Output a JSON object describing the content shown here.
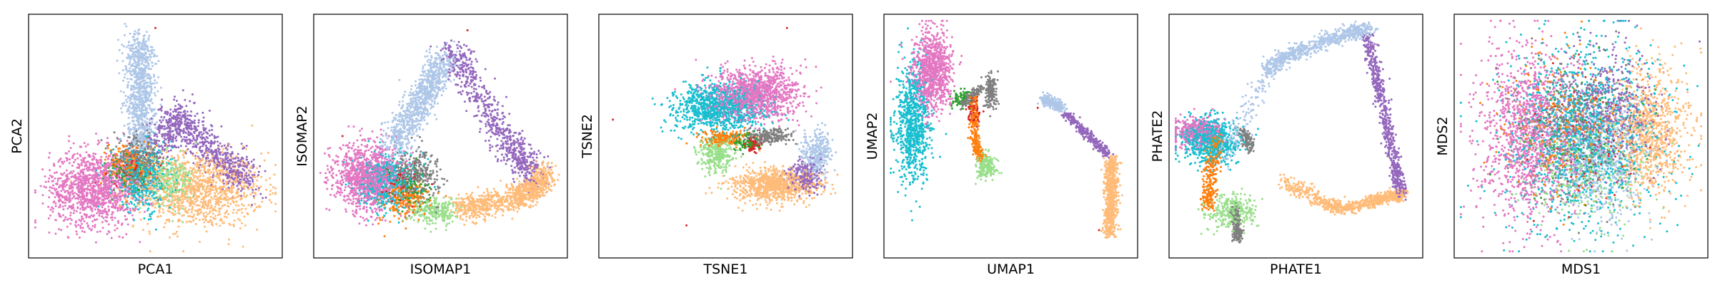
{
  "figure": {
    "palette": {
      "c0": "#aec7e8",
      "c1": "#9467bd",
      "c2": "#ffbb78",
      "c3": "#e377c2",
      "c4": "#17becf",
      "c5": "#7f7f7f",
      "c6": "#ff7f0e",
      "c7": "#98df8a",
      "c8": "#d62728",
      "c9": "#2ca02c"
    }
  },
  "chart_data": [
    {
      "type": "scatter",
      "xlabel": "PCA1",
      "ylabel": "PCA2",
      "xlim": [
        0,
        1
      ],
      "ylim": [
        0,
        1
      ],
      "grid": false,
      "ticks": false,
      "clusters": [
        {
          "color": "c2",
          "cx": 0.68,
          "cy": 0.27,
          "sx": 0.13,
          "sy": 0.08,
          "n": 1100
        },
        {
          "color": "c3",
          "cx": 0.25,
          "cy": 0.28,
          "sx": 0.09,
          "sy": 0.08,
          "n": 1200
        },
        {
          "color": "c4",
          "cx": 0.45,
          "cy": 0.32,
          "sx": 0.06,
          "sy": 0.07,
          "n": 500
        },
        {
          "color": "c5",
          "cx": 0.43,
          "cy": 0.4,
          "sx": 0.05,
          "sy": 0.05,
          "n": 300
        },
        {
          "color": "c7",
          "cx": 0.56,
          "cy": 0.31,
          "sx": 0.05,
          "sy": 0.05,
          "n": 250
        },
        {
          "color": "c6",
          "cx": 0.4,
          "cy": 0.38,
          "sx": 0.05,
          "sy": 0.05,
          "n": 200
        },
        {
          "color": "c9",
          "cx": 0.38,
          "cy": 0.34,
          "sx": 0.04,
          "sy": 0.04,
          "n": 100
        },
        {
          "color": "c8",
          "cx": 0.4,
          "cy": 0.36,
          "sx": 0.04,
          "sy": 0.04,
          "n": 80
        }
      ],
      "paths": [
        {
          "color": "c0",
          "n": 900,
          "w": 0.05,
          "pts": [
            [
              0.45,
              0.45
            ],
            [
              0.44,
              0.62
            ],
            [
              0.44,
              0.76
            ],
            [
              0.43,
              0.92
            ]
          ]
        },
        {
          "color": "c1",
          "n": 800,
          "w": 0.06,
          "pts": [
            [
              0.52,
              0.46
            ],
            [
              0.6,
              0.6
            ],
            [
              0.68,
              0.48
            ],
            [
              0.8,
              0.38
            ],
            [
              0.88,
              0.3
            ]
          ]
        }
      ],
      "outliers": [
        [
          0.5,
          0.96
        ]
      ]
    },
    {
      "type": "scatter",
      "xlabel": "ISOMAP1",
      "ylabel": "ISOMAP2",
      "xlim": [
        0,
        1
      ],
      "ylim": [
        0,
        1
      ],
      "grid": false,
      "ticks": false,
      "clusters": [
        {
          "color": "c3",
          "cx": 0.2,
          "cy": 0.33,
          "sx": 0.07,
          "sy": 0.07,
          "n": 1100
        },
        {
          "color": "c4",
          "cx": 0.28,
          "cy": 0.31,
          "sx": 0.06,
          "sy": 0.06,
          "n": 500
        },
        {
          "color": "c5",
          "cx": 0.4,
          "cy": 0.33,
          "sx": 0.05,
          "sy": 0.06,
          "n": 300
        },
        {
          "color": "c7",
          "cx": 0.47,
          "cy": 0.18,
          "sx": 0.05,
          "sy": 0.03,
          "n": 250
        },
        {
          "color": "c6",
          "cx": 0.35,
          "cy": 0.22,
          "sx": 0.05,
          "sy": 0.04,
          "n": 200
        },
        {
          "color": "c9",
          "cx": 0.38,
          "cy": 0.28,
          "sx": 0.04,
          "sy": 0.04,
          "n": 100
        },
        {
          "color": "c8",
          "cx": 0.33,
          "cy": 0.3,
          "sx": 0.04,
          "sy": 0.04,
          "n": 80
        }
      ],
      "paths": [
        {
          "color": "c2",
          "n": 1000,
          "w": 0.045,
          "pts": [
            [
              0.58,
              0.2
            ],
            [
              0.7,
              0.21
            ],
            [
              0.82,
              0.24
            ],
            [
              0.89,
              0.28
            ],
            [
              0.92,
              0.35
            ]
          ]
        },
        {
          "color": "c0",
          "n": 900,
          "w": 0.05,
          "pts": [
            [
              0.3,
              0.45
            ],
            [
              0.38,
              0.58
            ],
            [
              0.45,
              0.7
            ],
            [
              0.52,
              0.84
            ]
          ]
        },
        {
          "color": "c1",
          "n": 700,
          "w": 0.055,
          "pts": [
            [
              0.55,
              0.86
            ],
            [
              0.62,
              0.74
            ],
            [
              0.72,
              0.55
            ],
            [
              0.82,
              0.42
            ],
            [
              0.88,
              0.32
            ]
          ]
        }
      ],
      "outliers": [
        [
          0.61,
          0.95
        ],
        [
          0.1,
          0.5
        ]
      ]
    },
    {
      "type": "scatter",
      "xlabel": "TSNE1",
      "ylabel": "TSNE2",
      "xlim": [
        0,
        1
      ],
      "ylim": [
        0,
        1
      ],
      "grid": false,
      "ticks": false,
      "clusters": [
        {
          "color": "c3",
          "cx": 0.62,
          "cy": 0.68,
          "sx": 0.09,
          "sy": 0.055,
          "n": 1200
        },
        {
          "color": "c4",
          "cx": 0.47,
          "cy": 0.62,
          "sx": 0.09,
          "sy": 0.05,
          "n": 1000
        },
        {
          "color": "c2",
          "cx": 0.7,
          "cy": 0.29,
          "sx": 0.09,
          "sy": 0.035,
          "n": 900
        },
        {
          "color": "c0",
          "cx": 0.87,
          "cy": 0.43,
          "sx": 0.03,
          "sy": 0.05,
          "n": 300
        },
        {
          "color": "c1",
          "cx": 0.82,
          "cy": 0.33,
          "sx": 0.035,
          "sy": 0.035,
          "n": 250
        },
        {
          "color": "c7",
          "cx": 0.46,
          "cy": 0.42,
          "sx": 0.035,
          "sy": 0.035,
          "n": 300
        },
        {
          "color": "c6",
          "cx": 0.49,
          "cy": 0.49,
          "sx": 0.045,
          "sy": 0.015,
          "n": 200
        },
        {
          "color": "c5",
          "cx": 0.67,
          "cy": 0.5,
          "sx": 0.05,
          "sy": 0.015,
          "n": 200
        },
        {
          "color": "c9",
          "cx": 0.58,
          "cy": 0.47,
          "sx": 0.03,
          "sy": 0.02,
          "n": 80
        },
        {
          "color": "c8",
          "cx": 0.61,
          "cy": 0.46,
          "sx": 0.02,
          "sy": 0.015,
          "n": 60
        }
      ],
      "paths": [],
      "outliers": [
        [
          0.04,
          0.57
        ],
        [
          0.34,
          0.12
        ],
        [
          0.75,
          0.96
        ]
      ]
    },
    {
      "type": "scatter",
      "xlabel": "UMAP1",
      "ylabel": "UMAP2",
      "xlim": [
        0,
        1
      ],
      "ylim": [
        0,
        1
      ],
      "grid": false,
      "ticks": false,
      "clusters": [
        {
          "color": "c3",
          "cx": 0.18,
          "cy": 0.78,
          "sx": 0.04,
          "sy": 0.09,
          "n": 900
        },
        {
          "color": "c4",
          "cx": 0.1,
          "cy": 0.55,
          "sx": 0.035,
          "sy": 0.12,
          "n": 800
        },
        {
          "color": "c7",
          "cx": 0.4,
          "cy": 0.37,
          "sx": 0.02,
          "sy": 0.025,
          "n": 200
        },
        {
          "color": "c5",
          "cx": 0.42,
          "cy": 0.69,
          "sx": 0.012,
          "sy": 0.035,
          "n": 150
        },
        {
          "color": "c9",
          "cx": 0.3,
          "cy": 0.66,
          "sx": 0.02,
          "sy": 0.02,
          "n": 80
        },
        {
          "color": "c8",
          "cx": 0.35,
          "cy": 0.6,
          "sx": 0.015,
          "sy": 0.03,
          "n": 60
        }
      ],
      "paths": [
        {
          "color": "c0",
          "n": 250,
          "w": 0.018,
          "pts": [
            [
              0.63,
              0.66
            ],
            [
              0.67,
              0.64
            ],
            [
              0.71,
              0.62
            ]
          ]
        },
        {
          "color": "c1",
          "n": 300,
          "w": 0.015,
          "pts": [
            [
              0.72,
              0.6
            ],
            [
              0.78,
              0.54
            ],
            [
              0.84,
              0.48
            ],
            [
              0.9,
              0.42
            ]
          ]
        },
        {
          "color": "c2",
          "n": 700,
          "w": 0.022,
          "pts": [
            [
              0.91,
              0.4
            ],
            [
              0.91,
              0.3
            ],
            [
              0.91,
              0.2
            ],
            [
              0.9,
              0.08
            ]
          ]
        },
        {
          "color": "c6",
          "n": 250,
          "w": 0.015,
          "pts": [
            [
              0.35,
              0.66
            ],
            [
              0.35,
              0.55
            ],
            [
              0.36,
              0.46
            ],
            [
              0.38,
              0.4
            ]
          ]
        },
        {
          "color": "c5",
          "n": 120,
          "w": 0.015,
          "pts": [
            [
              0.3,
              0.63
            ],
            [
              0.34,
              0.67
            ],
            [
              0.38,
              0.7
            ]
          ]
        }
      ],
      "outliers": [
        [
          0.61,
          0.62
        ],
        [
          0.86,
          0.1
        ]
      ]
    },
    {
      "type": "scatter",
      "xlabel": "PHATE1",
      "ylabel": "PHATE2",
      "xlim": [
        0,
        1
      ],
      "ylim": [
        0,
        1
      ],
      "grid": false,
      "ticks": false,
      "clusters": [
        {
          "color": "c4",
          "cx": 0.15,
          "cy": 0.48,
          "sx": 0.06,
          "sy": 0.05,
          "n": 700
        },
        {
          "color": "c3",
          "cx": 0.1,
          "cy": 0.52,
          "sx": 0.05,
          "sy": 0.03,
          "n": 400
        },
        {
          "color": "c7",
          "cx": 0.24,
          "cy": 0.18,
          "sx": 0.05,
          "sy": 0.04,
          "n": 300
        }
      ],
      "paths": [
        {
          "color": "c0",
          "n": 700,
          "w": 0.028,
          "pts": [
            [
              0.38,
              0.78
            ],
            [
              0.48,
              0.85
            ],
            [
              0.6,
              0.9
            ],
            [
              0.72,
              0.94
            ],
            [
              0.8,
              0.95
            ]
          ]
        },
        {
          "color": "c1",
          "n": 650,
          "w": 0.022,
          "pts": [
            [
              0.79,
              0.93
            ],
            [
              0.82,
              0.8
            ],
            [
              0.85,
              0.65
            ],
            [
              0.88,
              0.5
            ],
            [
              0.91,
              0.35
            ],
            [
              0.93,
              0.25
            ]
          ]
        },
        {
          "color": "c2",
          "n": 600,
          "w": 0.022,
          "pts": [
            [
              0.6,
              0.22
            ],
            [
              0.7,
              0.19
            ],
            [
              0.8,
              0.22
            ],
            [
              0.88,
              0.24
            ],
            [
              0.93,
              0.25
            ]
          ]
        },
        {
          "color": "c6",
          "n": 300,
          "w": 0.025,
          "pts": [
            [
              0.18,
              0.5
            ],
            [
              0.16,
              0.4
            ],
            [
              0.15,
              0.28
            ],
            [
              0.14,
              0.2
            ]
          ]
        },
        {
          "color": "c5",
          "n": 200,
          "w": 0.015,
          "pts": [
            [
              0.25,
              0.2
            ],
            [
              0.26,
              0.12
            ],
            [
              0.26,
              0.06
            ]
          ]
        },
        {
          "color": "c5",
          "n": 120,
          "w": 0.02,
          "pts": [
            [
              0.28,
              0.52
            ],
            [
              0.3,
              0.48
            ],
            [
              0.32,
              0.44
            ]
          ]
        },
        {
          "color": "c2",
          "n": 150,
          "w": 0.03,
          "pts": [
            [
              0.45,
              0.3
            ],
            [
              0.52,
              0.27
            ],
            [
              0.6,
              0.23
            ]
          ]
        },
        {
          "color": "c0",
          "n": 150,
          "w": 0.04,
          "pts": [
            [
              0.2,
              0.4
            ],
            [
              0.28,
              0.55
            ],
            [
              0.38,
              0.78
            ]
          ]
        }
      ],
      "outliers": []
    },
    {
      "type": "scatter",
      "xlabel": "MDS1",
      "ylabel": "MDS2",
      "xlim": [
        0,
        1
      ],
      "ylim": [
        0,
        1
      ],
      "grid": false,
      "ticks": false,
      "clusters": [
        {
          "color": "c4",
          "cx": 0.5,
          "cy": 0.5,
          "sx": 0.16,
          "sy": 0.19,
          "n": 1300
        },
        {
          "color": "c3",
          "cx": 0.28,
          "cy": 0.5,
          "sx": 0.1,
          "sy": 0.18,
          "n": 1200
        },
        {
          "color": "c2",
          "cx": 0.78,
          "cy": 0.52,
          "sx": 0.08,
          "sy": 0.14,
          "n": 900
        },
        {
          "color": "c0",
          "cx": 0.57,
          "cy": 0.4,
          "sx": 0.1,
          "sy": 0.13,
          "n": 600
        },
        {
          "color": "c1",
          "cx": 0.62,
          "cy": 0.6,
          "sx": 0.1,
          "sy": 0.13,
          "n": 500
        },
        {
          "color": "c5",
          "cx": 0.46,
          "cy": 0.55,
          "sx": 0.12,
          "sy": 0.14,
          "n": 400
        },
        {
          "color": "c7",
          "cx": 0.52,
          "cy": 0.35,
          "sx": 0.12,
          "sy": 0.13,
          "n": 350
        },
        {
          "color": "c6",
          "cx": 0.42,
          "cy": 0.55,
          "sx": 0.12,
          "sy": 0.14,
          "n": 300
        },
        {
          "color": "c9",
          "cx": 0.48,
          "cy": 0.5,
          "sx": 0.12,
          "sy": 0.14,
          "n": 120
        },
        {
          "color": "c8",
          "cx": 0.5,
          "cy": 0.48,
          "sx": 0.12,
          "sy": 0.14,
          "n": 100
        }
      ],
      "paths": [],
      "outliers": []
    }
  ]
}
